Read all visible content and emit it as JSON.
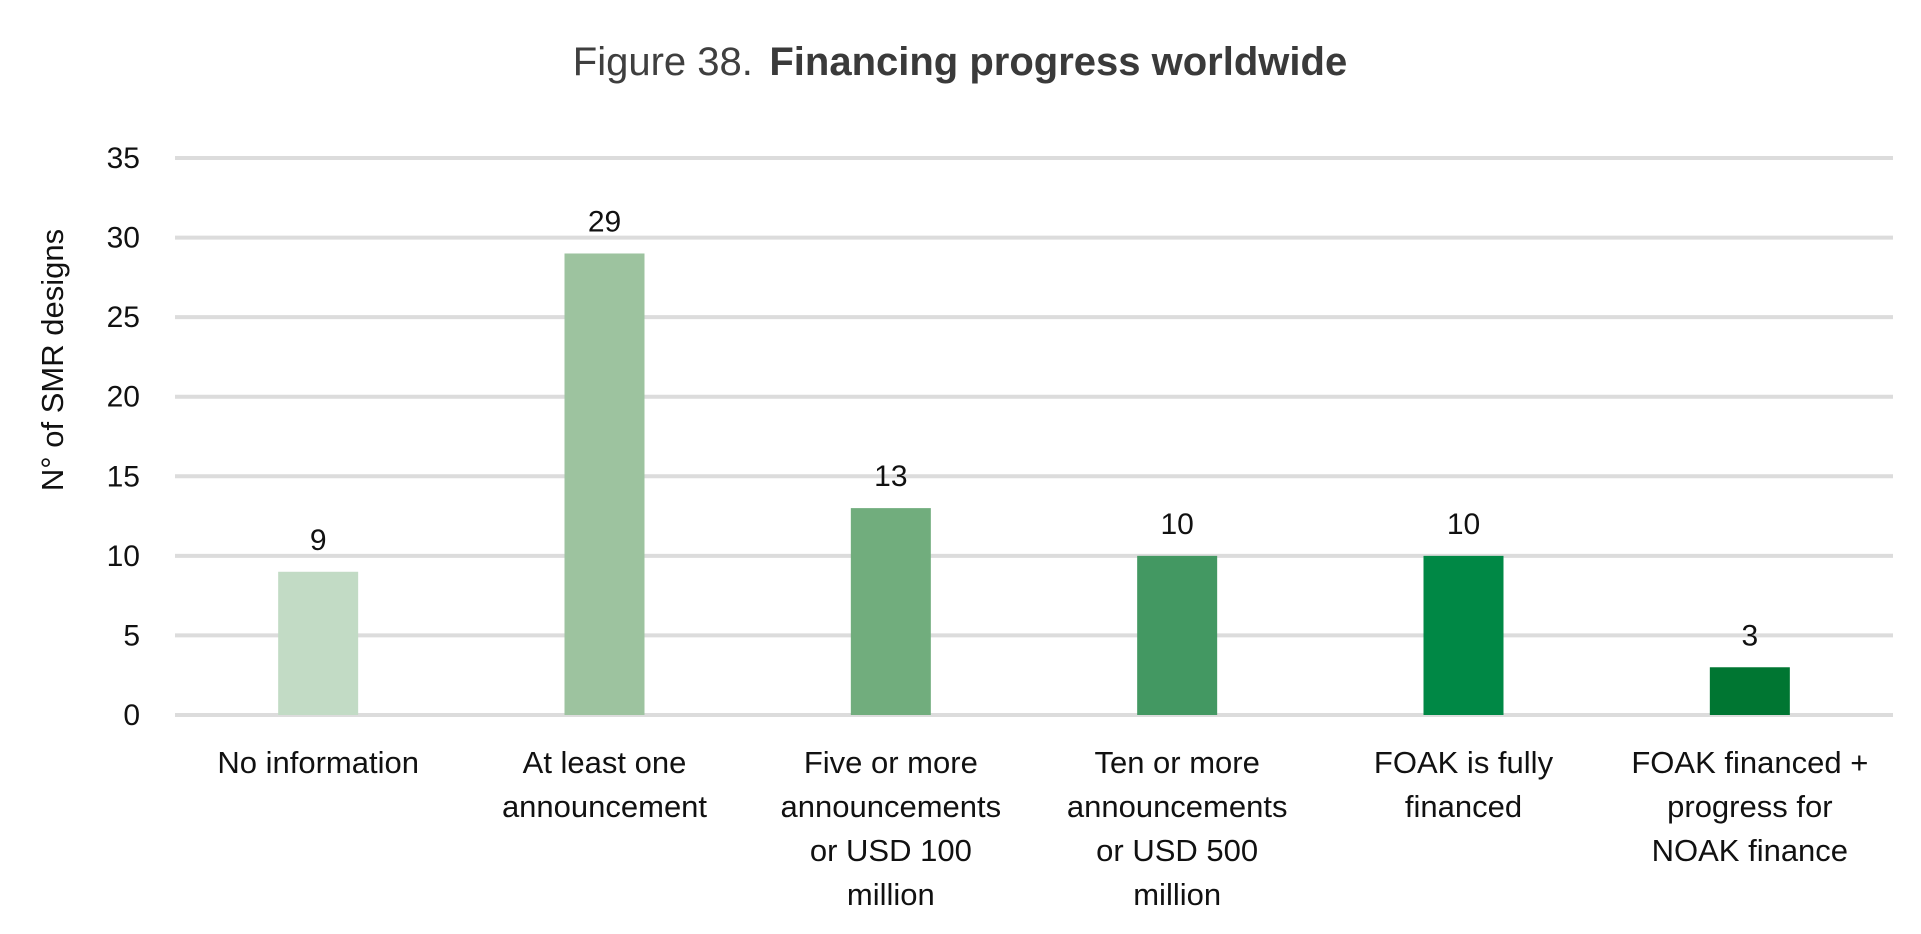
{
  "chart_data": {
    "type": "bar",
    "title_prefix": "Figure 38.",
    "title": "Financing progress worldwide",
    "xlabel": "",
    "ylabel": "N° of SMR designs",
    "ylim": [
      0,
      35
    ],
    "yticks": [
      0,
      5,
      10,
      15,
      20,
      25,
      30,
      35
    ],
    "grid": true,
    "legend": "none",
    "categories": [
      [
        "No information"
      ],
      [
        "At least one",
        "announcement"
      ],
      [
        "Five or more",
        "announcements",
        "or USD 100",
        "million"
      ],
      [
        "Ten or more",
        "announcements",
        "or USD 500",
        "million"
      ],
      [
        "FOAK is fully",
        "financed"
      ],
      [
        "FOAK financed +",
        "progress for",
        "NOAK finance"
      ]
    ],
    "values": [
      9,
      29,
      13,
      10,
      10,
      3
    ],
    "data_labels": [
      "9",
      "29",
      "13",
      "10",
      "10",
      "3"
    ],
    "colors": [
      "#c2dbc5",
      "#9dc39f",
      "#71ad7d",
      "#439862",
      "#008845",
      "#007632"
    ]
  }
}
